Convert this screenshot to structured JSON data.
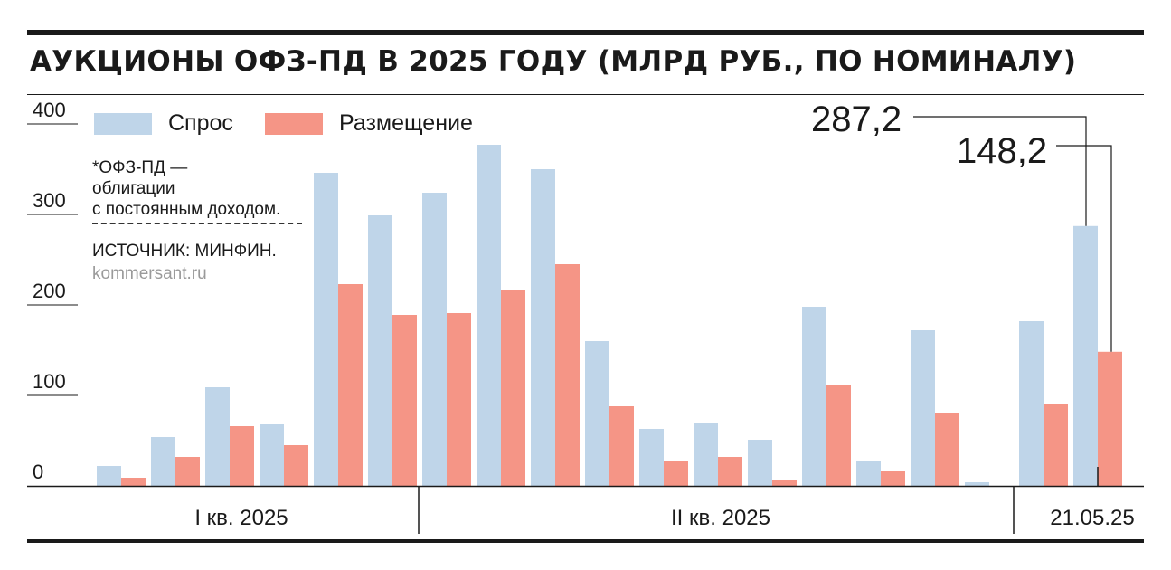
{
  "title": "АУКЦИОНЫ ОФЗ-ПД В 2025 ГОДУ (МЛРД РУБ., ПО НОМИНАЛУ)",
  "legend": {
    "demand": "Спрос",
    "placement": "Размещение"
  },
  "notes": {
    "footnote": "*ОФЗ-ПД —\nоблигации\nс постоянным доходом.",
    "source": "ИСТОЧНИК: МИНФИН.",
    "site": "kommersant.ru"
  },
  "callouts": {
    "demand_value": "287,2",
    "placement_value": "148,2"
  },
  "colors": {
    "demand": "#bfd5e9",
    "placement": "#f59586",
    "text": "#1a1a1a",
    "rule": "#1a1a1a"
  },
  "chart_data": {
    "type": "bar",
    "title": "АУКЦИОНЫ ОФЗ-ПД В 2025 ГОДУ (МЛРД РУБ., ПО НОМИНАЛУ)",
    "ylim": [
      0,
      400
    ],
    "yticks": [
      "0",
      "100",
      "200",
      "300",
      "400"
    ],
    "grid": "short tick marks at left",
    "legend_position": "top-left",
    "series": [
      {
        "name": "Спрос",
        "values": [
          22,
          54,
          109,
          68,
          346,
          299,
          324,
          377,
          350,
          160,
          63,
          70,
          51,
          198,
          28,
          172,
          4,
          182,
          287.2
        ]
      },
      {
        "name": "Размещение",
        "values": [
          9,
          32,
          66,
          45,
          223,
          189,
          191,
          217,
          245,
          88,
          28,
          32,
          6,
          111,
          16,
          80,
          0,
          91,
          148.2
        ]
      }
    ],
    "periods": [
      {
        "label": "I кв. 2025",
        "start": 0,
        "end": 5
      },
      {
        "label": "II кв. 2025",
        "start": 6,
        "end": 16
      },
      {
        "label": "21.05.25",
        "start": 17,
        "end": 18
      }
    ]
  }
}
